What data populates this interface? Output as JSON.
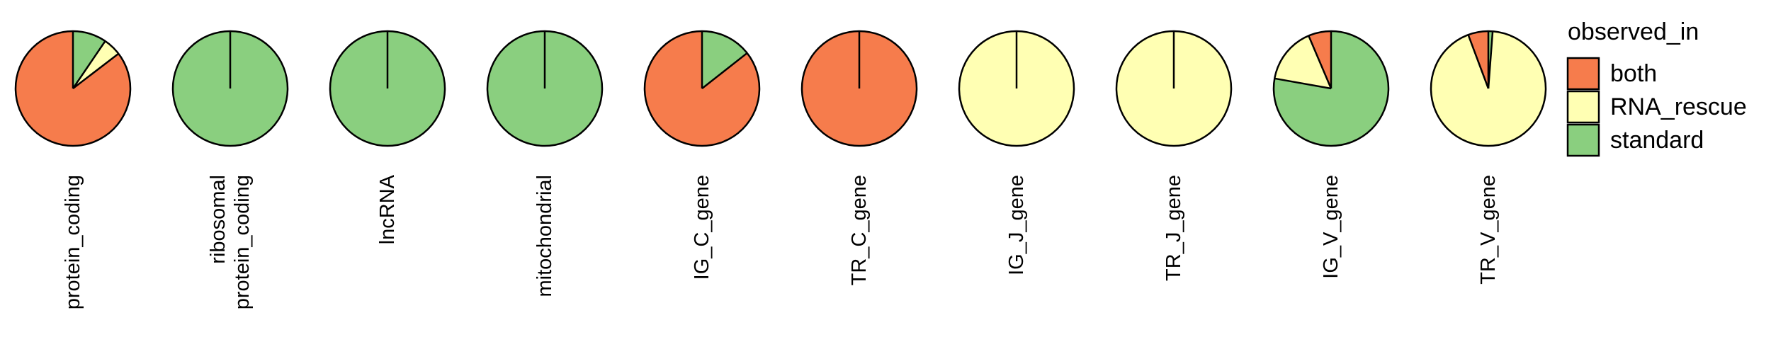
{
  "chart_data": {
    "type": "pie",
    "category_order": [
      "both",
      "RNA_rescue",
      "standard"
    ],
    "colors": {
      "both": "#F67C4C",
      "RNA_rescue": "#FFFFB3",
      "standard": "#8ACF7F"
    },
    "panels": [
      {
        "label": [
          "protein_coding"
        ],
        "values": {
          "both": 0.854,
          "RNA_rescue": 0.051,
          "standard": 0.095
        }
      },
      {
        "label": [
          "ribosomal",
          "protein_coding"
        ],
        "values": {
          "both": 0,
          "RNA_rescue": 0,
          "standard": 1.0
        }
      },
      {
        "label": [
          "lncRNA"
        ],
        "values": {
          "both": 0,
          "RNA_rescue": 0,
          "standard": 1.0
        }
      },
      {
        "label": [
          "mitochondrial"
        ],
        "values": {
          "both": 0,
          "RNA_rescue": 0,
          "standard": 1.0
        }
      },
      {
        "label": [
          "IG_C_gene"
        ],
        "values": {
          "both": 0.856,
          "RNA_rescue": 0,
          "standard": 0.144
        }
      },
      {
        "label": [
          "TR_C_gene"
        ],
        "values": {
          "both": 1.0,
          "RNA_rescue": 0,
          "standard": 0
        }
      },
      {
        "label": [
          "IG_J_gene"
        ],
        "values": {
          "both": 0,
          "RNA_rescue": 1.0,
          "standard": 0
        }
      },
      {
        "label": [
          "TR_J_gene"
        ],
        "values": {
          "both": 0,
          "RNA_rescue": 1.0,
          "standard": 0
        }
      },
      {
        "label": [
          "IG_V_gene"
        ],
        "values": {
          "both": 0.064,
          "RNA_rescue": 0.158,
          "standard": 0.778
        }
      },
      {
        "label": [
          "TR_V_gene"
        ],
        "values": {
          "both": 0.057,
          "RNA_rescue": 0.931,
          "standard": 0.012
        }
      }
    ],
    "legend": {
      "title": "observed_in",
      "entries": [
        "both",
        "RNA_rescue",
        "standard"
      ],
      "placement": "right"
    }
  }
}
